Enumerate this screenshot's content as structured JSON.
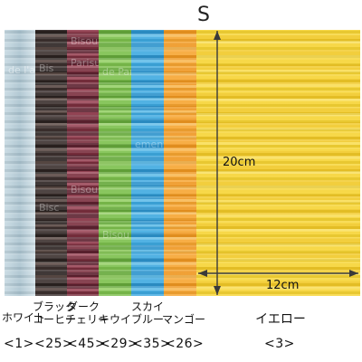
{
  "size_letter": "S",
  "dimensions": {
    "height_label": "20cm",
    "width_label": "12cm"
  },
  "colors": {
    "white": "#b9d1dc",
    "black_coffee": "#3b302e",
    "dark_cherry": "#7a2f3e",
    "kiwi": "#7cbf4c",
    "sky_blue": "#3ea9e0",
    "mango": "#f6a531",
    "yellow": "#f6d434",
    "arrow": "#3a3a3a"
  },
  "swatches": [
    {
      "name_line1": "",
      "name_line2": "ホワイト",
      "code": "<1>"
    },
    {
      "name_line1": "ブラック",
      "name_line2": "コーヒー",
      "code": "<25>"
    },
    {
      "name_line1": "ダーク",
      "name_line2": "チェリー",
      "code": "<45>"
    },
    {
      "name_line1": "",
      "name_line2": "キウイ",
      "code": "<29>"
    },
    {
      "name_line1": "スカイ",
      "name_line2": "ブルー",
      "code": "<35>"
    },
    {
      "name_line1": "",
      "name_line2": "マンゴー",
      "code": "<26>"
    },
    {
      "name_line1": "",
      "name_line2": "イエロー",
      "code": "<3>"
    }
  ],
  "faint_words": [
    "Bisou",
    "Bis",
    "Parisuf",
    "de l'ambassade",
    "de Partou",
    "Bisou",
    "ementaire",
    "Bisc",
    "Bisou"
  ]
}
